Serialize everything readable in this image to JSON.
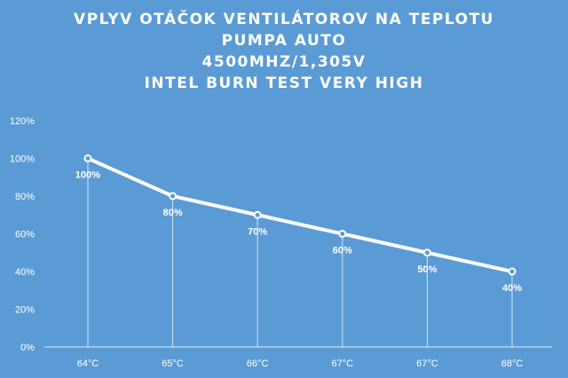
{
  "chart_data": {
    "type": "line",
    "title_lines": [
      "VPLYV OTÁČOK VENTILÁTOROV  NA TEPLOTU",
      "PUMPA AUTO",
      "4500MHZ/1,305V",
      "INTEL BURN TEST VERY HIGH"
    ],
    "xlabel": "",
    "ylabel": "",
    "categories": [
      "64°C",
      "65°C",
      "66°C",
      "67°C",
      "67°C",
      "68°C"
    ],
    "values": [
      100,
      80,
      70,
      60,
      50,
      40
    ],
    "data_labels": [
      "100%",
      "80%",
      "70%",
      "60%",
      "50%",
      "40%"
    ],
    "y_ticks": [
      "0%",
      "20%",
      "40%",
      "60%",
      "80%",
      "100%",
      "120%"
    ],
    "y_tick_values": [
      0,
      20,
      40,
      60,
      80,
      100,
      120
    ],
    "ylim": [
      0,
      120
    ],
    "grid": false,
    "drop_lines": true,
    "legend": "none",
    "colors": {
      "background": "#5b9bd5",
      "line": "#ffffff",
      "text": "#ffffff",
      "marker_fill": "#5b9bd5"
    }
  }
}
